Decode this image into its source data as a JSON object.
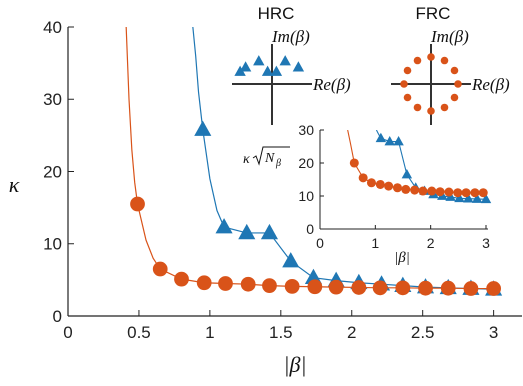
{
  "chart_data": {
    "type": "scatter",
    "colors": {
      "hrc": "#1f77b4",
      "frc": "#d95319",
      "axis": "#222222"
    },
    "main": {
      "xlabel": "|β|",
      "ylabel": "κ",
      "xlim": [
        0,
        3.2
      ],
      "ylim": [
        0,
        40
      ],
      "xticks": [
        0,
        0.5,
        1,
        1.5,
        2,
        2.5,
        3
      ],
      "xtick_labels": [
        "0",
        "0.5",
        "1",
        "1.5",
        "2",
        "2.5",
        "3"
      ],
      "yticks": [
        0,
        10,
        20,
        30,
        40
      ],
      "ytick_labels": [
        "0",
        "10",
        "20",
        "30",
        "40"
      ],
      "series": [
        {
          "marker": "triangle",
          "color": "#1f77b4",
          "x": [
            0.95,
            1.1,
            1.26,
            1.42,
            1.57,
            1.73,
            1.89,
            2.05,
            2.21,
            2.36,
            2.52,
            2.68,
            2.84,
            3.0
          ],
          "y": [
            25.8,
            12.3,
            11.5,
            11.5,
            7.6,
            5.3,
            4.9,
            4.6,
            4.4,
            4.2,
            4.0,
            3.9,
            3.8,
            3.7
          ],
          "curve_x": [
            0.88,
            0.9,
            0.92,
            0.95,
            1.0,
            1.05,
            1.1,
            1.26,
            1.42,
            1.57,
            1.73,
            1.89,
            2.05,
            2.21,
            2.36,
            2.52,
            2.68,
            2.84,
            3.0
          ],
          "curve_y": [
            40,
            36,
            31,
            25.8,
            19,
            14.6,
            12.3,
            11.5,
            11.5,
            7.6,
            5.3,
            4.9,
            4.6,
            4.4,
            4.2,
            4.0,
            3.9,
            3.8,
            3.7
          ]
        },
        {
          "marker": "circle",
          "color": "#d95319",
          "x": [
            0.49,
            0.65,
            0.8,
            0.96,
            1.11,
            1.27,
            1.42,
            1.58,
            1.74,
            1.89,
            2.05,
            2.2,
            2.36,
            2.52,
            2.68,
            2.84,
            3.0
          ],
          "y": [
            15.5,
            6.5,
            5.1,
            4.6,
            4.5,
            4.4,
            4.2,
            4.1,
            4.05,
            4.0,
            3.95,
            3.9,
            3.9,
            3.85,
            3.85,
            3.8,
            3.8
          ],
          "curve_x": [
            0.41,
            0.43,
            0.45,
            0.47,
            0.49,
            0.55,
            0.6,
            0.65,
            0.8,
            0.96,
            1.11,
            1.27,
            1.42,
            1.58,
            1.74,
            1.89,
            2.05,
            2.2,
            2.36,
            2.52,
            2.68,
            2.84,
            3.0
          ],
          "curve_y": [
            40,
            30,
            23,
            18.5,
            15.5,
            10.5,
            8.0,
            6.5,
            5.1,
            4.6,
            4.5,
            4.4,
            4.2,
            4.1,
            4.05,
            4.0,
            3.95,
            3.9,
            3.9,
            3.85,
            3.85,
            3.8,
            3.8
          ]
        }
      ]
    },
    "inset": {
      "xlabel": "|β|",
      "ylabel": "κ√N_β",
      "ylabel_main": "κ",
      "ylabel_sqrt": "N",
      "ylabel_sub": "β",
      "xlim": [
        0,
        3
      ],
      "ylim": [
        0,
        30
      ],
      "xticks": [
        0,
        1,
        2,
        3
      ],
      "xtick_labels": [
        "0",
        "1",
        "2",
        "3"
      ],
      "yticks": [
        0,
        10,
        20,
        30
      ],
      "ytick_labels": [
        "0",
        "10",
        "20",
        "30"
      ],
      "series": [
        {
          "marker": "triangle",
          "color": "#1f77b4",
          "x": [
            1.1,
            1.26,
            1.42,
            1.57,
            1.73,
            1.89,
            2.05,
            2.21,
            2.36,
            2.52,
            2.68,
            2.84,
            3.0
          ],
          "y": [
            27.5,
            26.5,
            26.5,
            16.5,
            12.5,
            11.5,
            10.5,
            10.0,
            9.7,
            9.3,
            9.2,
            9.1,
            9.0
          ],
          "curve_x": [
            1.02,
            1.05,
            1.1,
            1.26,
            1.42,
            1.57,
            1.73,
            1.89,
            2.05,
            2.21,
            2.36,
            2.52,
            2.68,
            2.84,
            3.0
          ],
          "curve_y": [
            30,
            29,
            27.5,
            26.5,
            26.5,
            16.5,
            12.5,
            11.5,
            10.5,
            10.0,
            9.7,
            9.3,
            9.2,
            9.1,
            9.0
          ]
        },
        {
          "marker": "circle",
          "color": "#d95319",
          "x": [
            0.62,
            0.78,
            0.93,
            1.09,
            1.24,
            1.4,
            1.55,
            1.71,
            1.86,
            2.02,
            2.17,
            2.33,
            2.49,
            2.64,
            2.8,
            2.95
          ],
          "y": [
            20.0,
            15.5,
            14.0,
            13.5,
            13.0,
            12.5,
            12.0,
            11.8,
            11.5,
            11.5,
            11.3,
            11.2,
            11.0,
            11.0,
            11.0,
            11.0
          ],
          "curve_x": [
            0.5,
            0.55,
            0.62,
            0.78,
            0.93,
            1.09,
            1.24,
            1.4,
            1.55,
            1.71,
            1.86,
            2.02,
            2.17,
            2.33,
            2.49,
            2.64,
            2.8,
            2.95
          ],
          "curve_y": [
            30,
            26,
            20.0,
            15.5,
            14.0,
            13.5,
            13.0,
            12.5,
            12.0,
            11.8,
            11.5,
            11.5,
            11.3,
            11.2,
            11.0,
            11.0,
            11.0,
            11.0
          ]
        }
      ]
    },
    "diagrams": [
      {
        "title": "HRC",
        "im_label": "Im(β)",
        "re_label": "Re(β)",
        "marker": "triangle",
        "color": "#1f77b4",
        "points": [
          [
            -1.2,
            0.38
          ],
          [
            -0.6,
            0.52
          ],
          [
            0.6,
            0.52
          ],
          [
            1.2,
            0.38
          ],
          [
            -1.45,
            0.28
          ],
          [
            0.2,
            0.28
          ],
          [
            -0.2,
            0.28
          ]
        ]
      },
      {
        "title": "FRC",
        "im_label": "Im(β)",
        "re_label": "Re(β)",
        "marker": "circle",
        "color": "#d95319",
        "points": [
          [
            1,
            0
          ],
          [
            0.87,
            0.5
          ],
          [
            0.5,
            0.87
          ],
          [
            0,
            1
          ],
          [
            -0.5,
            0.87
          ],
          [
            -0.87,
            0.5
          ],
          [
            -1,
            0
          ],
          [
            -0.87,
            -0.5
          ],
          [
            -0.5,
            -0.87
          ],
          [
            0,
            -1
          ],
          [
            0.5,
            -0.87
          ],
          [
            0.87,
            -0.5
          ]
        ]
      }
    ]
  }
}
